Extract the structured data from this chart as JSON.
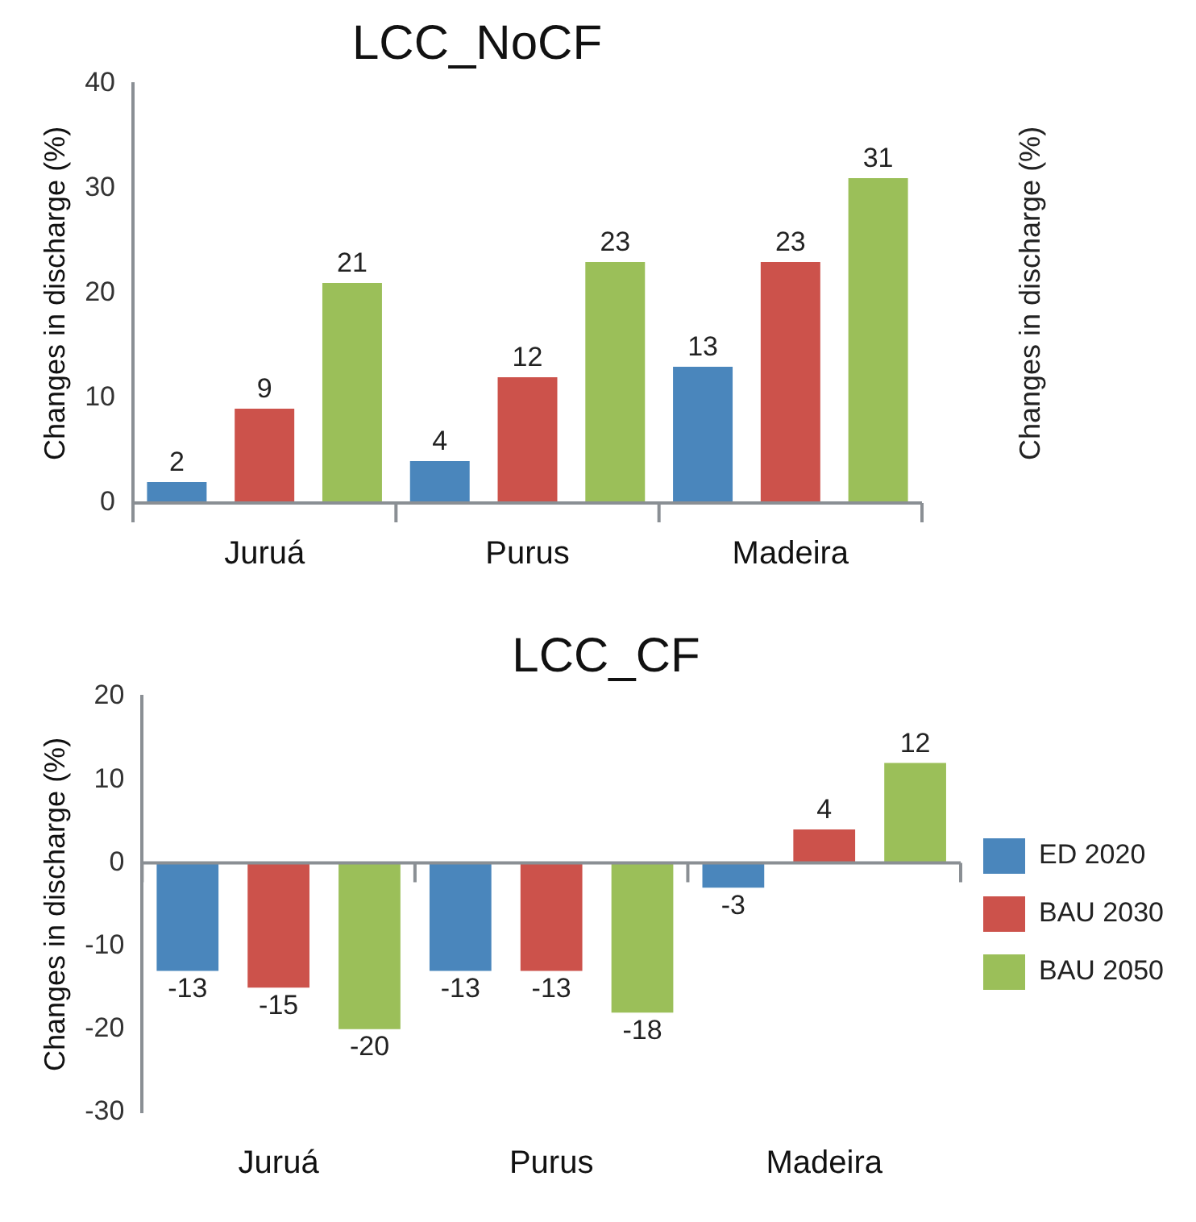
{
  "chart_data": [
    {
      "type": "bar",
      "title": "LCC_NoCF",
      "ylabel": "Changes in discharge (%)",
      "categories": [
        "Juruá",
        "Purus",
        "Madeira"
      ],
      "series": [
        {
          "color": "#4a86bc",
          "values": [
            2,
            4,
            13
          ]
        },
        {
          "color": "#cc524b",
          "values": [
            9,
            12,
            23
          ]
        },
        {
          "color": "#9bbf59",
          "values": [
            21,
            23,
            31
          ]
        }
      ],
      "ylim": [
        0,
        40
      ],
      "yticks": [
        0,
        10,
        20,
        30,
        40
      ],
      "data_labels": true,
      "annotations": [
        "Changes in discharge (%)"
      ]
    },
    {
      "type": "bar",
      "title": "LCC_CF",
      "ylabel": "Changes in discharge (%)",
      "categories": [
        "Juruá",
        "Purus",
        "Madeira"
      ],
      "series": [
        {
          "name": "ED 2020",
          "color": "#4a86bc",
          "values": [
            -13,
            -13,
            -3
          ]
        },
        {
          "name": "BAU 2030",
          "color": "#cc524b",
          "values": [
            -15,
            -13,
            4
          ]
        },
        {
          "name": "BAU 2050",
          "color": "#9bbf59",
          "values": [
            -20,
            -18,
            12
          ]
        }
      ],
      "ylim": [
        -30,
        20
      ],
      "yticks": [
        -30,
        -20,
        -10,
        0,
        10,
        20
      ],
      "data_labels": true,
      "legend": "right"
    }
  ]
}
